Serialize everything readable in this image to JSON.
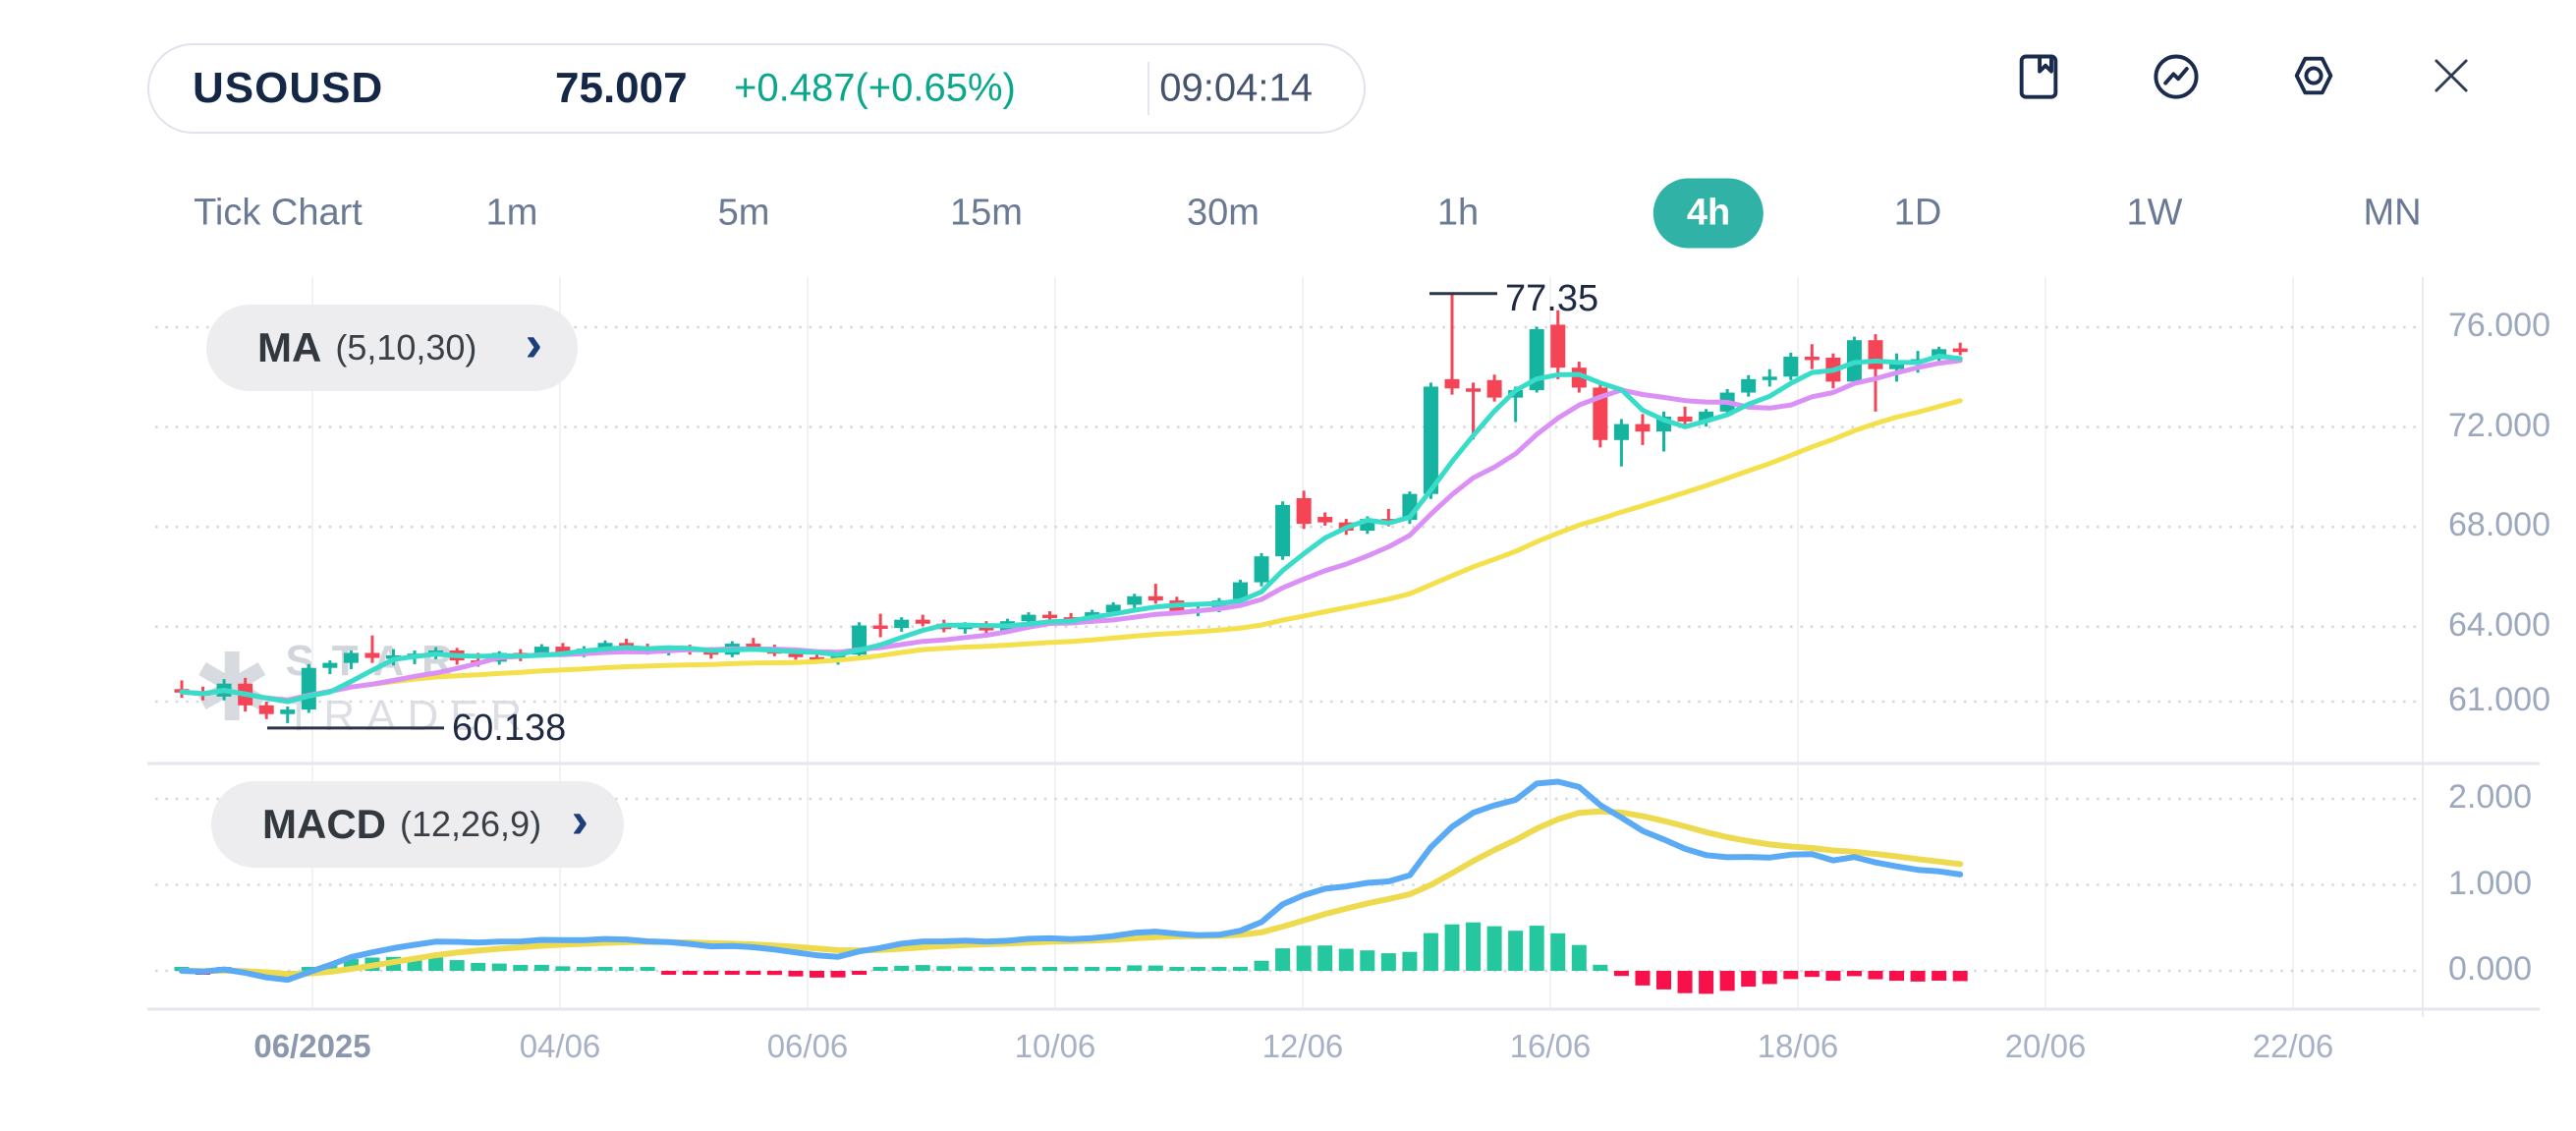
{
  "header": {
    "symbol": "USOUSD",
    "price": "75.007",
    "change": "+0.487(+0.65%)",
    "time": "09:04:14"
  },
  "header_icons": [
    {
      "name": "bookmark-icon"
    },
    {
      "name": "indicator-icon"
    },
    {
      "name": "settings-icon"
    },
    {
      "name": "close-icon"
    }
  ],
  "timeframes": [
    {
      "label": "Tick Chart",
      "active": false
    },
    {
      "label": "1m",
      "active": false
    },
    {
      "label": "5m",
      "active": false
    },
    {
      "label": "15m",
      "active": false
    },
    {
      "label": "30m",
      "active": false
    },
    {
      "label": "1h",
      "active": false
    },
    {
      "label": "4h",
      "active": true
    },
    {
      "label": "1D",
      "active": false
    },
    {
      "label": "1W",
      "active": false
    },
    {
      "label": "MN",
      "active": false
    }
  ],
  "indicators": {
    "ma": {
      "name": "MA",
      "params": "(5,10,30)"
    },
    "macd": {
      "name": "MACD",
      "params": "(12,26,9)"
    }
  },
  "annotations": {
    "high": "77.35",
    "low": "60.138"
  },
  "watermark": {
    "logo": "✱",
    "line1": "STAR",
    "line2": "TRADER"
  },
  "price_axis": {
    "ticks": [
      "76.000",
      "72.000",
      "68.000",
      "64.000",
      "61.000"
    ],
    "values": [
      76,
      72,
      68,
      64,
      61
    ]
  },
  "macd_axis": {
    "ticks": [
      "2.000",
      "1.000",
      "0.000"
    ],
    "values": [
      2,
      1,
      0
    ]
  },
  "x_axis": {
    "labels": [
      "06/2025",
      "04/06",
      "06/06",
      "10/06",
      "12/06",
      "16/06",
      "18/06",
      "20/06",
      "22/06"
    ]
  },
  "colors": {
    "up": "#14b4a1",
    "down": "#f54456",
    "hist_up": "#25c79f",
    "hist_down": "#f8104a",
    "ma_fast": "#38dcc8",
    "ma_mid": "#da90f5",
    "ma_slow": "#f3e04b",
    "macd_line": "#5aaaf5",
    "signal_line": "#eeda4f",
    "accent": "#30b2a6",
    "grid_dot": "#d7d7de",
    "grid_vert": "#f2f2f6",
    "separator": "#e6e6ee",
    "axis_line": "#e9e9f0",
    "leader": "#2b3548"
  },
  "chart_data": {
    "type": "candlestick",
    "symbol": "USOUSD",
    "timeframe": "4h",
    "high_label": 77.35,
    "low_label": 60.138,
    "ma_periods": [
      5,
      10,
      30
    ],
    "macd_params": [
      12,
      26,
      9
    ],
    "price_range": [
      61,
      76
    ],
    "macd_range": [
      0,
      2
    ],
    "candles": [
      [
        61.5,
        61.85,
        61.15,
        61.38
      ],
      [
        61.38,
        61.6,
        61.05,
        61.25
      ],
      [
        61.2,
        61.9,
        61.05,
        61.72
      ],
      [
        61.72,
        61.95,
        60.6,
        60.85
      ],
      [
        60.85,
        61.0,
        60.3,
        60.5
      ],
      [
        60.5,
        60.8,
        60.138,
        60.68
      ],
      [
        60.68,
        62.5,
        60.55,
        62.35
      ],
      [
        62.35,
        62.65,
        62.1,
        62.55
      ],
      [
        62.55,
        63.05,
        62.3,
        62.95
      ],
      [
        62.95,
        63.65,
        62.55,
        62.75
      ],
      [
        62.75,
        63.1,
        62.45,
        62.85
      ],
      [
        62.85,
        63.05,
        62.5,
        62.92
      ],
      [
        62.92,
        63.18,
        62.7,
        63.05
      ],
      [
        63.05,
        63.15,
        62.48,
        62.65
      ],
      [
        62.65,
        62.95,
        62.4,
        62.6
      ],
      [
        62.6,
        63.02,
        62.48,
        62.95
      ],
      [
        62.95,
        63.1,
        62.62,
        62.88
      ],
      [
        62.88,
        63.3,
        62.78,
        63.2
      ],
      [
        63.2,
        63.35,
        62.82,
        62.98
      ],
      [
        62.98,
        63.22,
        62.78,
        63.12
      ],
      [
        63.12,
        63.45,
        62.95,
        63.35
      ],
      [
        63.35,
        63.52,
        63.02,
        63.18
      ],
      [
        63.18,
        63.32,
        62.88,
        62.98
      ],
      [
        62.98,
        63.25,
        62.85,
        63.15
      ],
      [
        63.15,
        63.28,
        62.88,
        63.02
      ],
      [
        63.02,
        63.18,
        62.72,
        62.88
      ],
      [
        62.88,
        63.42,
        62.78,
        63.32
      ],
      [
        63.32,
        63.55,
        63.0,
        63.12
      ],
      [
        63.12,
        63.28,
        62.82,
        62.92
      ],
      [
        62.92,
        63.08,
        62.68,
        62.78
      ],
      [
        62.78,
        62.95,
        62.58,
        62.7
      ],
      [
        62.7,
        62.98,
        62.48,
        62.88
      ],
      [
        62.88,
        64.18,
        62.78,
        64.05
      ],
      [
        64.05,
        64.52,
        63.58,
        63.95
      ],
      [
        63.95,
        64.38,
        63.8,
        64.28
      ],
      [
        64.28,
        64.48,
        64.02,
        64.12
      ],
      [
        64.12,
        64.28,
        63.78,
        63.9
      ],
      [
        63.9,
        64.18,
        63.72,
        64.08
      ],
      [
        64.08,
        64.22,
        63.72,
        63.85
      ],
      [
        63.85,
        64.32,
        63.75,
        64.22
      ],
      [
        64.22,
        64.58,
        64.08,
        64.48
      ],
      [
        64.48,
        64.62,
        64.22,
        64.38
      ],
      [
        64.38,
        64.55,
        64.12,
        64.22
      ],
      [
        64.22,
        64.68,
        64.12,
        64.58
      ],
      [
        64.58,
        64.98,
        64.42,
        64.88
      ],
      [
        64.88,
        65.32,
        64.72,
        65.22
      ],
      [
        65.22,
        65.72,
        64.92,
        65.05
      ],
      [
        65.05,
        65.2,
        64.48,
        64.62
      ],
      [
        64.62,
        64.85,
        64.42,
        64.72
      ],
      [
        64.72,
        65.15,
        64.58,
        65.05
      ],
      [
        65.05,
        65.88,
        64.95,
        65.78
      ],
      [
        65.78,
        66.95,
        65.62,
        66.82
      ],
      [
        66.82,
        69.02,
        66.68,
        68.88
      ],
      [
        69.15,
        69.45,
        67.92,
        68.12
      ],
      [
        68.4,
        68.58,
        68.05,
        68.18
      ],
      [
        68.18,
        68.32,
        67.68,
        67.85
      ],
      [
        67.85,
        68.42,
        67.72,
        68.32
      ],
      [
        68.32,
        68.72,
        68.02,
        68.28
      ],
      [
        68.28,
        69.42,
        68.12,
        69.32
      ],
      [
        69.32,
        73.78,
        69.12,
        73.62
      ],
      [
        73.92,
        77.35,
        73.3,
        73.55
      ],
      [
        73.55,
        73.78,
        71.5,
        73.52
      ],
      [
        73.88,
        74.1,
        73.02,
        73.18
      ],
      [
        73.18,
        73.62,
        72.2,
        73.48
      ],
      [
        73.48,
        76.02,
        73.38,
        75.92
      ],
      [
        76.1,
        76.68,
        73.92,
        74.38
      ],
      [
        74.38,
        74.62,
        73.38,
        73.58
      ],
      [
        73.58,
        73.85,
        71.18,
        71.48
      ],
      [
        71.48,
        72.32,
        70.42,
        72.12
      ],
      [
        72.12,
        72.52,
        71.28,
        71.82
      ],
      [
        71.82,
        72.62,
        71.02,
        72.42
      ],
      [
        72.42,
        72.82,
        71.92,
        72.22
      ],
      [
        72.22,
        72.72,
        72.02,
        72.62
      ],
      [
        72.62,
        73.52,
        72.48,
        73.38
      ],
      [
        73.38,
        74.08,
        73.22,
        73.92
      ],
      [
        73.92,
        74.32,
        73.62,
        74.02
      ],
      [
        74.02,
        74.98,
        73.88,
        74.82
      ],
      [
        74.82,
        75.32,
        74.32,
        74.78
      ],
      [
        74.78,
        74.95,
        73.55,
        73.82
      ],
      [
        73.82,
        75.62,
        73.72,
        75.48
      ],
      [
        75.48,
        75.72,
        72.62,
        74.32
      ],
      [
        74.32,
        74.95,
        73.82,
        74.58
      ],
      [
        74.58,
        75.05,
        74.18,
        74.72
      ],
      [
        74.72,
        75.22,
        74.52,
        75.12
      ],
      [
        75.15,
        75.38,
        74.88,
        75.007
      ]
    ]
  }
}
